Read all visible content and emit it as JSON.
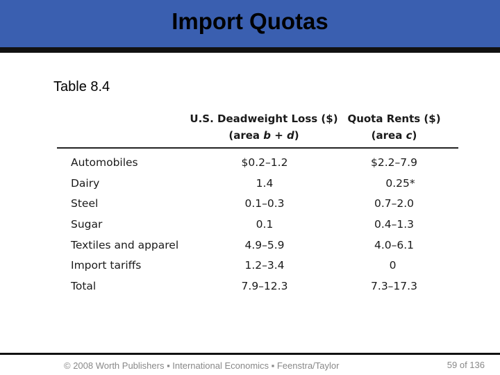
{
  "slide": {
    "title": "Import Quotas",
    "table_label": "Table 8.4"
  },
  "table": {
    "columns": [
      {
        "line1": "U.S. Deadweight Loss ($)",
        "line2_prefix": "(area ",
        "line2_var": "b + d",
        "line2_suffix": ")"
      },
      {
        "line1": "Quota Rents ($)",
        "line2_prefix": "(area ",
        "line2_var": "c",
        "line2_suffix": ")"
      }
    ],
    "rows": [
      {
        "category": "Automobiles",
        "deadweight_loss": "$0.2–1.2",
        "quota_rents": "$2.2–7.9"
      },
      {
        "category": "Dairy",
        "deadweight_loss": "1.4",
        "quota_rents": "0.25*"
      },
      {
        "category": "Steel",
        "deadweight_loss": "0.1–0.3",
        "quota_rents": "0.7–2.0"
      },
      {
        "category": "Sugar",
        "deadweight_loss": "0.1",
        "quota_rents": "0.4–1.3"
      },
      {
        "category": "Textiles and apparel",
        "deadweight_loss": "4.9–5.9",
        "quota_rents": "4.0–6.1"
      },
      {
        "category": "Import tariffs",
        "deadweight_loss": "1.2–3.4",
        "quota_rents": "0"
      },
      {
        "category": "Total",
        "deadweight_loss": "7.9–12.3",
        "quota_rents": "7.3–17.3"
      }
    ]
  },
  "footer": {
    "copyright": "© 2008 Worth Publishers ▪ International Economics ▪ Feenstra/Taylor",
    "page_number": "59 of 136"
  },
  "colors": {
    "title_bar": "#3a5fb0",
    "rule": "#111111",
    "footer_text": "#888888"
  }
}
